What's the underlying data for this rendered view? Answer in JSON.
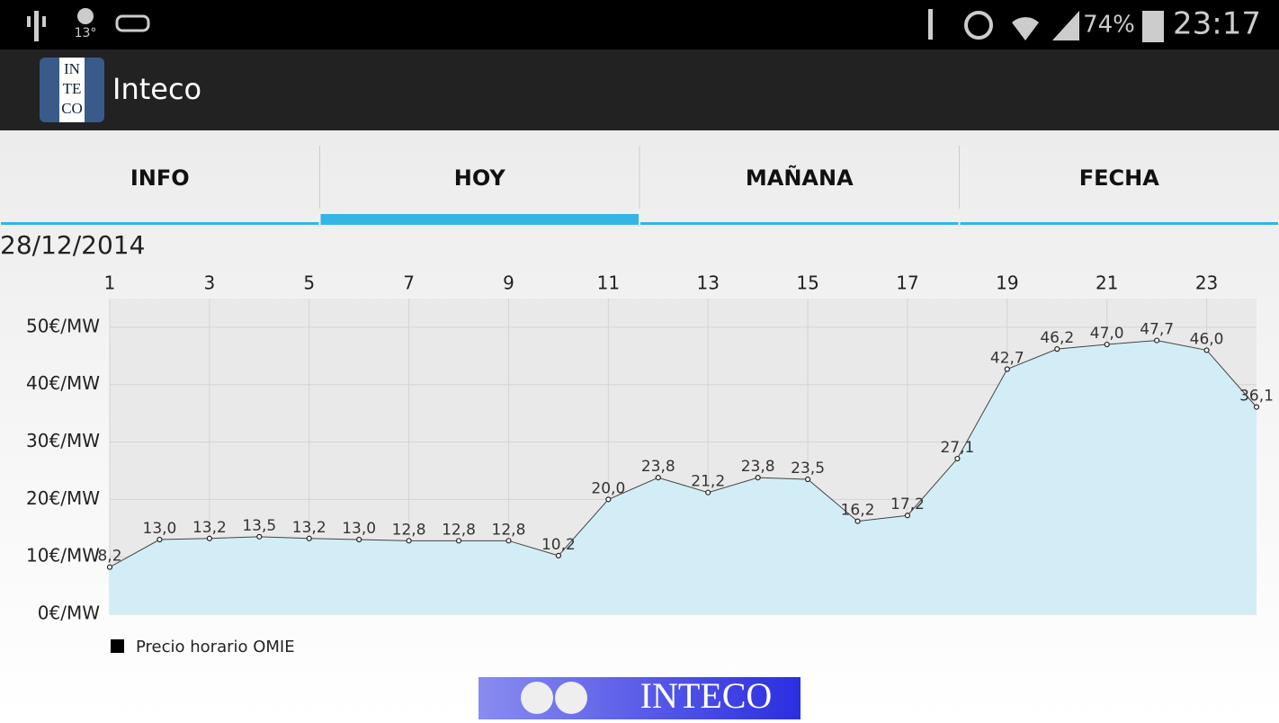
{
  "status_bar": {
    "temperature": "13°",
    "battery": "74%",
    "time": "23:17"
  },
  "app_bar": {
    "logo": [
      "IN",
      "TE",
      "CO"
    ],
    "title": "Inteco"
  },
  "tabs": [
    "INFO",
    "HOY",
    "MAÑANA",
    "FECHA"
  ],
  "selected_tab": 1,
  "date": "28/12/2014",
  "chart_data": {
    "type": "area",
    "x": [
      1,
      2,
      3,
      4,
      5,
      6,
      7,
      8,
      9,
      10,
      11,
      12,
      13,
      14,
      15,
      16,
      17,
      18,
      19,
      20,
      21,
      22,
      23,
      24
    ],
    "xlim": [
      1,
      24
    ],
    "xticks": [
      1,
      3,
      5,
      7,
      9,
      11,
      13,
      15,
      17,
      19,
      21,
      23
    ],
    "ylim": [
      0,
      55
    ],
    "yticks": [
      {
        "value": 0,
        "label": "0€/MW"
      },
      {
        "value": 10,
        "label": "10€/MW"
      },
      {
        "value": 20,
        "label": "20€/MW"
      },
      {
        "value": 30,
        "label": "30€/MW"
      },
      {
        "value": 40,
        "label": "40€/MW"
      },
      {
        "value": 50,
        "label": "50€/MW"
      }
    ],
    "grid": true,
    "series": [
      {
        "name": "Precio horario OMIE",
        "color": "#444444",
        "area_color": "#d2edf6",
        "legend_color": "#000000",
        "values": [
          8.2,
          13.0,
          13.2,
          13.5,
          13.2,
          13.0,
          12.8,
          12.8,
          12.8,
          10.2,
          20.0,
          23.8,
          21.2,
          23.8,
          23.5,
          16.2,
          17.2,
          27.1,
          42.7,
          46.2,
          47.0,
          47.7,
          46.0,
          36.1
        ],
        "value_labels": [
          "8,2",
          "13,0",
          "13,2",
          "13,5",
          "13,2",
          "13,0",
          "12,8",
          "12,8",
          "12,8",
          "10,2",
          "20,0",
          "23,8",
          "21,2",
          "23,8",
          "23,5",
          "16,2",
          "17,2",
          "27,1",
          "42,7",
          "46,2",
          "47,0",
          "47,7",
          "46,0",
          "36,1"
        ]
      }
    ]
  },
  "banner": "INTECO"
}
